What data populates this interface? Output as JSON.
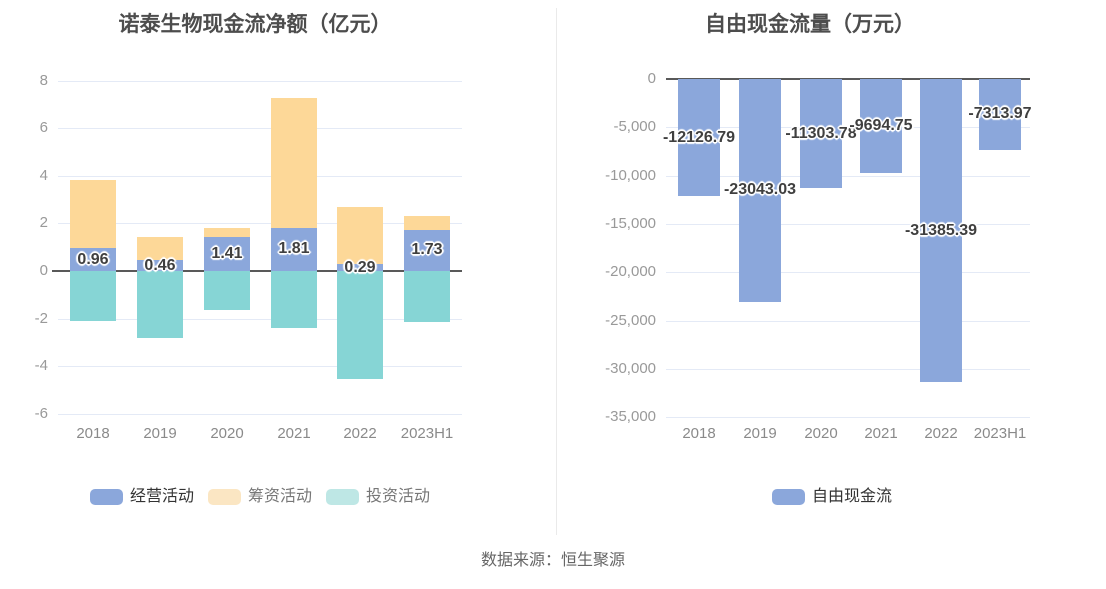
{
  "page": {
    "source_note": "数据来源：恒生聚源"
  },
  "chart_data": [
    {
      "type": "bar",
      "stacked": true,
      "title": "诺泰生物现金流净额（亿元）",
      "categories": [
        "2018",
        "2019",
        "2020",
        "2021",
        "2022",
        "2023H1"
      ],
      "ylim": [
        -6.9,
        8.2
      ],
      "grid": true,
      "legend_position": "bottom",
      "y_ticks": [
        {
          "v": 8,
          "label": "8"
        },
        {
          "v": 6,
          "label": "6"
        },
        {
          "v": 4,
          "label": "4"
        },
        {
          "v": 2,
          "label": "2"
        },
        {
          "v": 0,
          "label": "0"
        },
        {
          "v": -2,
          "label": "-2"
        },
        {
          "v": -4,
          "label": "-4"
        },
        {
          "v": -6,
          "label": "-6"
        }
      ],
      "series": [
        {
          "name": "经营活动",
          "key": "operating",
          "color": "#8BA7DB",
          "values": [
            0.96,
            0.46,
            1.41,
            1.81,
            0.29,
            1.73
          ],
          "labels": [
            "0.96",
            "0.46",
            "1.41",
            "1.81",
            "0.29",
            "1.73"
          ]
        },
        {
          "name": "筹资活动",
          "key": "financing",
          "color": "#FDD898",
          "values": [
            2.85,
            0.95,
            0.39,
            5.46,
            2.4,
            0.56
          ]
        },
        {
          "name": "投资活动",
          "key": "investing",
          "color": "#86D5D5",
          "values": [
            -2.1,
            -2.8,
            -1.65,
            -2.4,
            -4.55,
            -2.15
          ]
        }
      ],
      "legend": [
        {
          "label": "经营活动",
          "swatch": "#8BA7DB",
          "text_color": "#333333"
        },
        {
          "label": "筹资活动",
          "swatch": "#FBE6C3",
          "text_color": "#777777"
        },
        {
          "label": "投资活动",
          "swatch": "#BEE7E5",
          "text_color": "#777777"
        }
      ]
    },
    {
      "type": "bar",
      "stacked": false,
      "title": "自由现金流量（万元）",
      "categories": [
        "2018",
        "2019",
        "2020",
        "2021",
        "2022",
        "2023H1"
      ],
      "ylim": [
        -35000,
        0
      ],
      "grid": true,
      "legend_position": "bottom",
      "y_ticks": [
        {
          "v": 0,
          "label": "0"
        },
        {
          "v": -5000,
          "label": "-5,000"
        },
        {
          "v": -10000,
          "label": "-10,000"
        },
        {
          "v": -15000,
          "label": "-15,000"
        },
        {
          "v": -20000,
          "label": "-20,000"
        },
        {
          "v": -25000,
          "label": "-25,000"
        },
        {
          "v": -30000,
          "label": "-30,000"
        },
        {
          "v": -35000,
          "label": "-35,000"
        }
      ],
      "series": [
        {
          "name": "自由现金流",
          "key": "free-cashflow",
          "color": "#8BA7DB",
          "values": [
            -12126.79,
            -23043.03,
            -11303.78,
            -9694.75,
            -31385.39,
            -7313.97
          ],
          "labels": [
            "-12126.79",
            "-23043.03",
            "-11303.78",
            "-9694.75",
            "-31385.39",
            "-7313.97"
          ]
        }
      ],
      "legend": [
        {
          "label": "自由现金流",
          "swatch": "#8BA7DB",
          "text_color": "#333333"
        }
      ]
    }
  ]
}
